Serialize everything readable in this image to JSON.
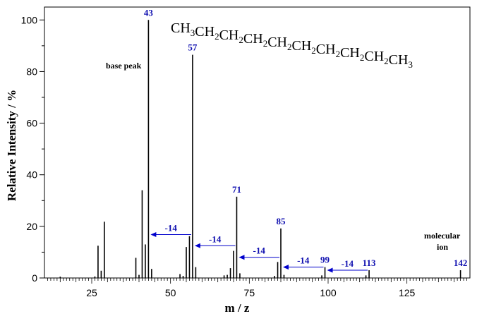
{
  "chart_data": {
    "type": "bar",
    "xlabel": "m / z",
    "ylabel": "Relative Intensity / %",
    "xlim": [
      10,
      145
    ],
    "ylim": [
      0,
      105
    ],
    "x_ticks": [
      25,
      50,
      75,
      100,
      125
    ],
    "y_ticks": [
      0,
      20,
      40,
      60,
      80,
      100
    ],
    "formula": {
      "parts": [
        {
          "t": "CH",
          "sub": "3"
        },
        {
          "t": "CH",
          "sub": "2"
        },
        {
          "t": "CH",
          "sub": "2"
        },
        {
          "t": "CH",
          "sub": "2"
        },
        {
          "t": "CH",
          "sub": "2"
        },
        {
          "t": "CH",
          "sub": "2"
        },
        {
          "t": "CH",
          "sub": "2"
        },
        {
          "t": "CH",
          "sub": "2"
        },
        {
          "t": "CH",
          "sub": "2"
        },
        {
          "t": "CH",
          "sub": "3"
        }
      ]
    },
    "peaks": [
      {
        "mz": 15,
        "i": 0.5
      },
      {
        "mz": 26,
        "i": 0.6
      },
      {
        "mz": 27,
        "i": 12.5
      },
      {
        "mz": 28,
        "i": 2.8
      },
      {
        "mz": 29,
        "i": 21.8
      },
      {
        "mz": 39,
        "i": 7.8
      },
      {
        "mz": 40,
        "i": 1.2
      },
      {
        "mz": 41,
        "i": 34.0
      },
      {
        "mz": 42,
        "i": 13.0
      },
      {
        "mz": 43,
        "i": 100
      },
      {
        "mz": 44,
        "i": 3.5
      },
      {
        "mz": 53,
        "i": 1.5
      },
      {
        "mz": 54,
        "i": 0.8
      },
      {
        "mz": 55,
        "i": 12.0
      },
      {
        "mz": 56,
        "i": 16.2
      },
      {
        "mz": 57,
        "i": 86.5
      },
      {
        "mz": 58,
        "i": 4.2
      },
      {
        "mz": 67,
        "i": 1.0
      },
      {
        "mz": 68,
        "i": 1.2
      },
      {
        "mz": 69,
        "i": 3.8
      },
      {
        "mz": 70,
        "i": 10.5
      },
      {
        "mz": 71,
        "i": 31.5
      },
      {
        "mz": 72,
        "i": 1.8
      },
      {
        "mz": 83,
        "i": 0.8
      },
      {
        "mz": 84,
        "i": 6.2
      },
      {
        "mz": 85,
        "i": 19.2
      },
      {
        "mz": 86,
        "i": 1.2
      },
      {
        "mz": 98,
        "i": 1.0
      },
      {
        "mz": 99,
        "i": 4.2
      },
      {
        "mz": 112,
        "i": 1.0
      },
      {
        "mz": 113,
        "i": 3.0
      },
      {
        "mz": 142,
        "i": 3.0
      }
    ],
    "peak_labels": [
      {
        "mz": 43,
        "label": "43"
      },
      {
        "mz": 57,
        "label": "57"
      },
      {
        "mz": 71,
        "label": "71"
      },
      {
        "mz": 85,
        "label": "85"
      },
      {
        "mz": 99,
        "label": "99"
      },
      {
        "mz": 113,
        "label": "113"
      },
      {
        "mz": 142,
        "label": "142"
      }
    ],
    "losses": [
      {
        "from": 57,
        "to": 43,
        "y": 16.8,
        "label": "-14"
      },
      {
        "from": 71,
        "to": 57,
        "y": 12.5,
        "label": "-14"
      },
      {
        "from": 85,
        "to": 71,
        "y": 8.0,
        "label": "-14"
      },
      {
        "from": 99,
        "to": 85,
        "y": 4.2,
        "label": "-14"
      },
      {
        "from": 113,
        "to": 99,
        "y": 3.0,
        "label": "-14"
      }
    ],
    "annotations": {
      "base_peak": "base peak",
      "molecular_ion_line1": "molecular",
      "molecular_ion_line2": "ion"
    },
    "colors": {
      "bars": "#000000",
      "labels": "#1010b0",
      "arrows": "#0000cc"
    }
  }
}
